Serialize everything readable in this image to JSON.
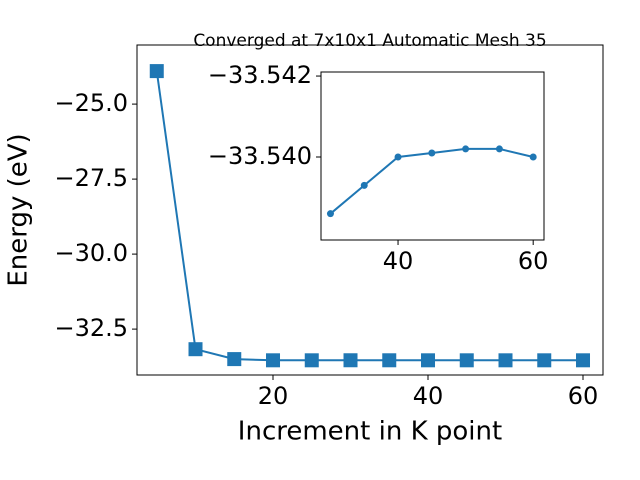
{
  "chart_data": [
    {
      "type": "line",
      "title": "Converged at 7x10x1 Automatic Mesh 35",
      "x_label": "Increment in K point",
      "y_label": "Energy (eV)",
      "x": [
        5,
        10,
        15,
        20,
        25,
        30,
        35,
        40,
        45,
        50,
        55,
        60
      ],
      "series": [
        {
          "color": "#1f77b4",
          "marker": "square",
          "values": [
            -23.9,
            -33.17,
            -33.5,
            -33.54,
            -33.54,
            -33.5386,
            -33.5393,
            -33.54,
            -33.5401,
            -33.5402,
            -33.5402,
            -33.54
          ]
        }
      ],
      "xlim": [
        2.45,
        62.58
      ],
      "ylim": [
        -34.03,
        -23.03
      ],
      "xticks": [
        20,
        40,
        60
      ],
      "yticks": [
        {
          "value": -25.0,
          "label": "−25.0"
        },
        {
          "value": -27.5,
          "label": "−27.5"
        },
        {
          "value": -30.0,
          "label": "−30.0"
        },
        {
          "value": -32.5,
          "label": "−32.5"
        }
      ]
    },
    {
      "type": "line",
      "x": [
        30,
        35,
        40,
        45,
        50,
        55,
        60
      ],
      "series": [
        {
          "color": "#1f77b4",
          "marker": "circle",
          "values": [
            -33.5386,
            -33.5393,
            -33.54,
            -33.5401,
            -33.5402,
            -33.5402,
            -33.54
          ]
        }
      ],
      "xlim": [
        28.6,
        61.6
      ],
      "ylim": [
        -33.53795,
        -33.5421
      ],
      "xticks": [
        40,
        60
      ],
      "yticks": [
        {
          "value": -33.542,
          "label": "−33.542"
        },
        {
          "value": -33.54,
          "label": "−33.540"
        }
      ]
    }
  ]
}
